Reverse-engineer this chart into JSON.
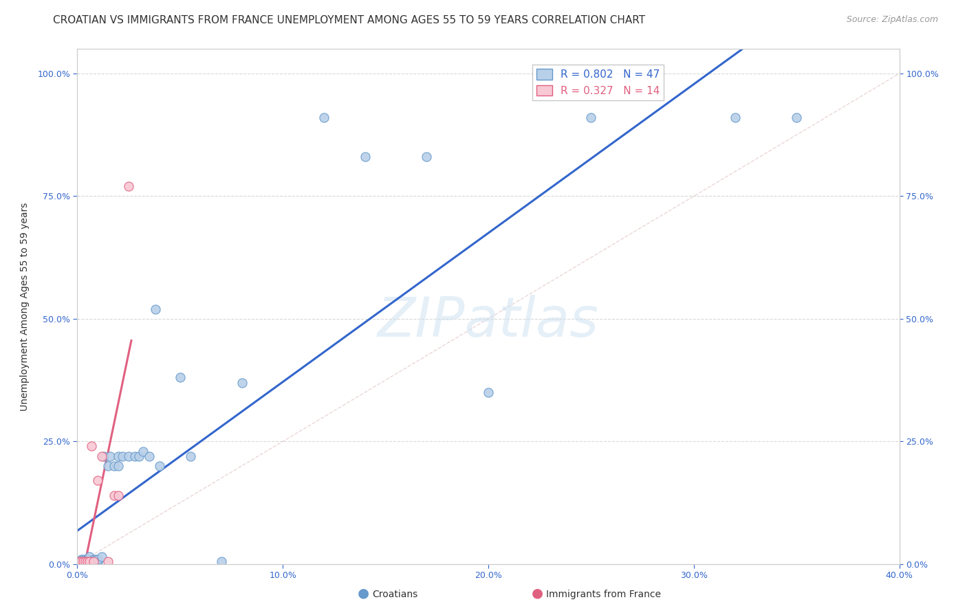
{
  "title": "CROATIAN VS IMMIGRANTS FROM FRANCE UNEMPLOYMENT AMONG AGES 55 TO 59 YEARS CORRELATION CHART",
  "source": "Source: ZipAtlas.com",
  "ylabel": "Unemployment Among Ages 55 to 59 years",
  "xlim": [
    0.0,
    0.4
  ],
  "ylim": [
    0.0,
    1.05
  ],
  "yticks": [
    0.0,
    0.25,
    0.5,
    0.75,
    1.0
  ],
  "ytick_labels": [
    "0.0%",
    "25.0%",
    "50.0%",
    "75.0%",
    "100.0%"
  ],
  "xticks": [
    0.0,
    0.1,
    0.2,
    0.3,
    0.4
  ],
  "xtick_labels": [
    "0.0%",
    "10.0%",
    "20.0%",
    "30.0%",
    "40.0%"
  ],
  "bg_color": "#ffffff",
  "grid_color": "#d8d8d8",
  "watermark": "ZIPatlas",
  "croatians_x": [
    0.001,
    0.001,
    0.002,
    0.002,
    0.003,
    0.003,
    0.003,
    0.004,
    0.004,
    0.005,
    0.005,
    0.005,
    0.006,
    0.006,
    0.007,
    0.008,
    0.008,
    0.009,
    0.01,
    0.01,
    0.01,
    0.012,
    0.013,
    0.015,
    0.016,
    0.018,
    0.02,
    0.02,
    0.022,
    0.025,
    0.028,
    0.03,
    0.032,
    0.035,
    0.038,
    0.04,
    0.05,
    0.055,
    0.07,
    0.08,
    0.12,
    0.14,
    0.17,
    0.2,
    0.25,
    0.32,
    0.35
  ],
  "croatians_y": [
    0.005,
    0.005,
    0.005,
    0.01,
    0.005,
    0.005,
    0.01,
    0.005,
    0.01,
    0.005,
    0.01,
    0.01,
    0.01,
    0.015,
    0.005,
    0.005,
    0.01,
    0.01,
    0.005,
    0.005,
    0.01,
    0.015,
    0.22,
    0.2,
    0.22,
    0.2,
    0.2,
    0.22,
    0.22,
    0.22,
    0.22,
    0.22,
    0.23,
    0.22,
    0.52,
    0.2,
    0.38,
    0.22,
    0.005,
    0.37,
    0.91,
    0.83,
    0.83,
    0.35,
    0.91,
    0.91,
    0.91
  ],
  "croatians_color": "#b8d0e8",
  "croatians_edgecolor": "#6699cc",
  "croatians_R": 0.802,
  "croatians_N": 47,
  "france_x": [
    0.001,
    0.002,
    0.003,
    0.004,
    0.005,
    0.006,
    0.007,
    0.008,
    0.01,
    0.012,
    0.015,
    0.018,
    0.02,
    0.025
  ],
  "france_y": [
    0.005,
    0.005,
    0.005,
    0.005,
    0.005,
    0.005,
    0.24,
    0.005,
    0.17,
    0.22,
    0.005,
    0.14,
    0.14,
    0.77
  ],
  "france_color": "#f8c8d4",
  "france_edgecolor": "#e06080",
  "france_R": 0.327,
  "france_N": 14,
  "blue_line_color": "#3366cc",
  "pink_line_color": "#e06080",
  "diag_line_color": "#cccccc",
  "legend_blue_label": "Croatians",
  "legend_pink_label": "Immigrants from France",
  "title_fontsize": 11,
  "axis_label_fontsize": 10,
  "tick_fontsize": 9,
  "legend_fontsize": 11,
  "source_fontsize": 9
}
